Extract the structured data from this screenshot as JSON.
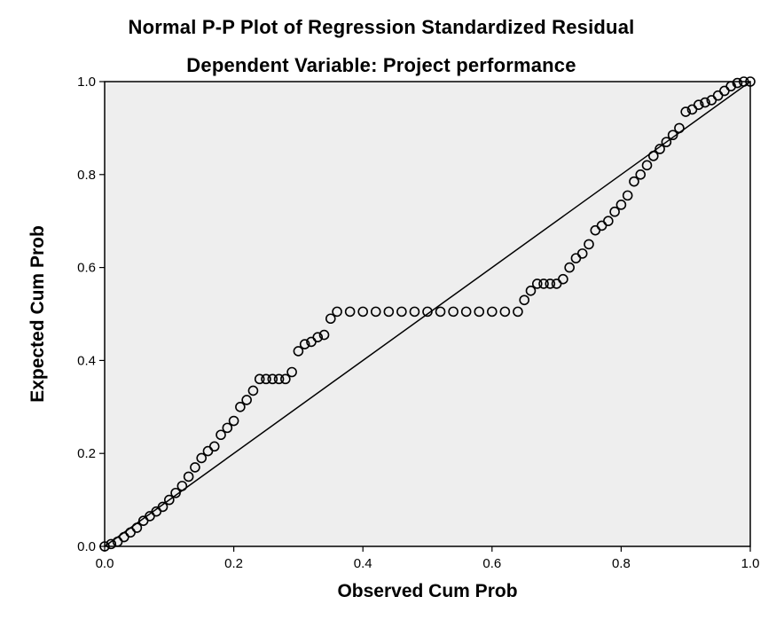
{
  "chart_data": {
    "type": "scatter",
    "title": "Normal P-P Plot of Regression Standardized Residual",
    "subtitle": "Dependent Variable: Project performance",
    "xlabel": "Observed Cum Prob",
    "ylabel": "Expected Cum Prob",
    "xlim": [
      0,
      1
    ],
    "ylim": [
      0,
      1
    ],
    "xticks": [
      "0.0",
      "0.2",
      "0.4",
      "0.6",
      "0.8",
      "1.0"
    ],
    "yticks": [
      "0.0",
      "0.2",
      "0.4",
      "0.6",
      "0.8",
      "1.0"
    ],
    "reference_line": [
      [
        0,
        0
      ],
      [
        1,
        1
      ]
    ],
    "plot_background": "#eeeeee",
    "marker": "open-circle",
    "grid": false,
    "points": [
      [
        0.0,
        0.0
      ],
      [
        0.01,
        0.005
      ],
      [
        0.02,
        0.01
      ],
      [
        0.03,
        0.02
      ],
      [
        0.04,
        0.03
      ],
      [
        0.05,
        0.04
      ],
      [
        0.06,
        0.055
      ],
      [
        0.07,
        0.065
      ],
      [
        0.08,
        0.075
      ],
      [
        0.09,
        0.085
      ],
      [
        0.1,
        0.1
      ],
      [
        0.11,
        0.115
      ],
      [
        0.12,
        0.13
      ],
      [
        0.13,
        0.15
      ],
      [
        0.14,
        0.17
      ],
      [
        0.15,
        0.19
      ],
      [
        0.16,
        0.205
      ],
      [
        0.17,
        0.215
      ],
      [
        0.18,
        0.24
      ],
      [
        0.19,
        0.255
      ],
      [
        0.2,
        0.27
      ],
      [
        0.21,
        0.3
      ],
      [
        0.22,
        0.315
      ],
      [
        0.23,
        0.335
      ],
      [
        0.24,
        0.36
      ],
      [
        0.25,
        0.36
      ],
      [
        0.26,
        0.36
      ],
      [
        0.27,
        0.36
      ],
      [
        0.28,
        0.36
      ],
      [
        0.29,
        0.375
      ],
      [
        0.3,
        0.42
      ],
      [
        0.31,
        0.435
      ],
      [
        0.32,
        0.44
      ],
      [
        0.33,
        0.45
      ],
      [
        0.34,
        0.455
      ],
      [
        0.35,
        0.49
      ],
      [
        0.36,
        0.505
      ],
      [
        0.38,
        0.505
      ],
      [
        0.4,
        0.505
      ],
      [
        0.42,
        0.505
      ],
      [
        0.44,
        0.505
      ],
      [
        0.46,
        0.505
      ],
      [
        0.48,
        0.505
      ],
      [
        0.5,
        0.505
      ],
      [
        0.52,
        0.505
      ],
      [
        0.54,
        0.505
      ],
      [
        0.56,
        0.505
      ],
      [
        0.58,
        0.505
      ],
      [
        0.6,
        0.505
      ],
      [
        0.62,
        0.505
      ],
      [
        0.64,
        0.505
      ],
      [
        0.65,
        0.53
      ],
      [
        0.66,
        0.55
      ],
      [
        0.67,
        0.565
      ],
      [
        0.68,
        0.565
      ],
      [
        0.69,
        0.565
      ],
      [
        0.7,
        0.565
      ],
      [
        0.71,
        0.575
      ],
      [
        0.72,
        0.6
      ],
      [
        0.73,
        0.62
      ],
      [
        0.74,
        0.63
      ],
      [
        0.75,
        0.65
      ],
      [
        0.76,
        0.68
      ],
      [
        0.77,
        0.69
      ],
      [
        0.78,
        0.7
      ],
      [
        0.79,
        0.72
      ],
      [
        0.8,
        0.735
      ],
      [
        0.81,
        0.755
      ],
      [
        0.82,
        0.785
      ],
      [
        0.83,
        0.8
      ],
      [
        0.84,
        0.82
      ],
      [
        0.85,
        0.84
      ],
      [
        0.86,
        0.855
      ],
      [
        0.87,
        0.87
      ],
      [
        0.88,
        0.885
      ],
      [
        0.89,
        0.9
      ],
      [
        0.9,
        0.935
      ],
      [
        0.91,
        0.94
      ],
      [
        0.92,
        0.95
      ],
      [
        0.93,
        0.955
      ],
      [
        0.94,
        0.96
      ],
      [
        0.95,
        0.97
      ],
      [
        0.96,
        0.98
      ],
      [
        0.97,
        0.99
      ],
      [
        0.98,
        0.997
      ],
      [
        0.99,
        1.0
      ],
      [
        1.0,
        1.0
      ]
    ]
  }
}
